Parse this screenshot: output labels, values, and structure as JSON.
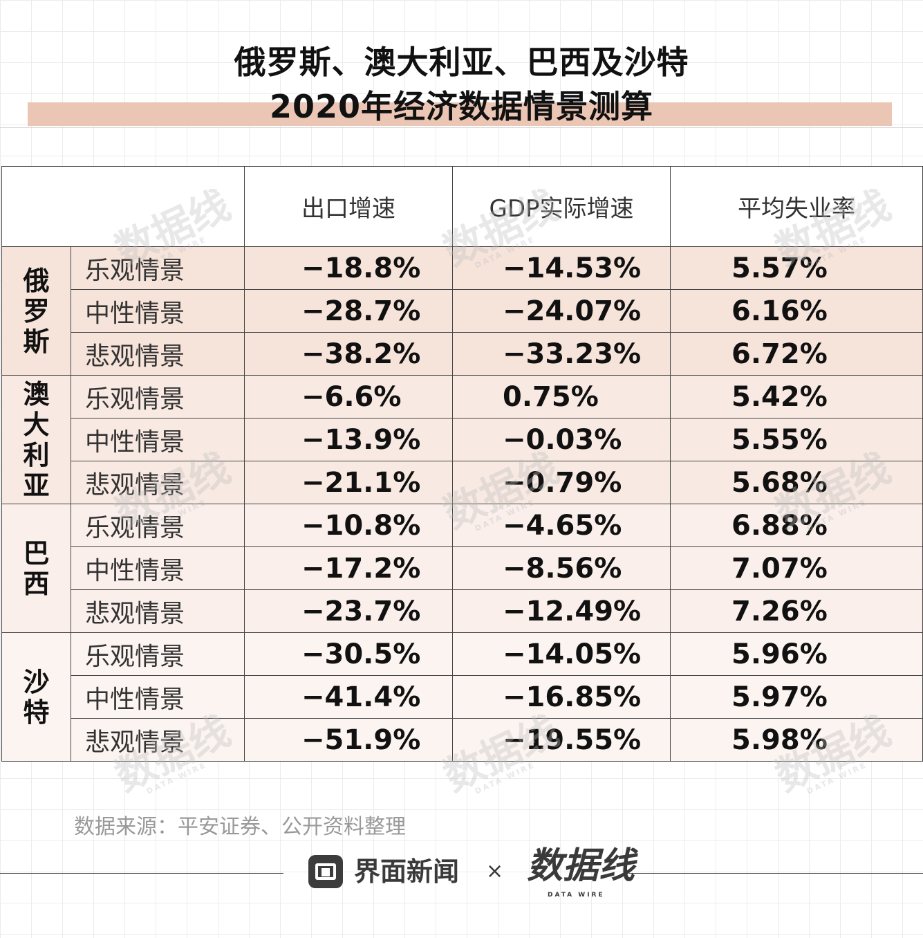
{
  "title": {
    "line1": "俄罗斯、澳大利亚、巴西及沙特",
    "line2": "2020年经济数据情景测算"
  },
  "chart_data": {
    "type": "table",
    "columns": [
      "出口增速",
      "GDP实际增速",
      "平均失业率"
    ],
    "groups": [
      {
        "country": "俄罗斯",
        "rows": [
          {
            "scenario": "乐观情景",
            "values": [
              "−18.8%",
              "−14.53%",
              "5.57%"
            ]
          },
          {
            "scenario": "中性情景",
            "values": [
              "−28.7%",
              "−24.07%",
              "6.16%"
            ]
          },
          {
            "scenario": "悲观情景",
            "values": [
              "−38.2%",
              "−33.23%",
              "6.72%"
            ]
          }
        ]
      },
      {
        "country": "澳大利亚",
        "rows": [
          {
            "scenario": "乐观情景",
            "values": [
              "−6.6%",
              "0.75%",
              "5.42%"
            ]
          },
          {
            "scenario": "中性情景",
            "values": [
              "−13.9%",
              "−0.03%",
              "5.55%"
            ]
          },
          {
            "scenario": "悲观情景",
            "values": [
              "−21.1%",
              "−0.79%",
              "5.68%"
            ]
          }
        ]
      },
      {
        "country": "巴西",
        "rows": [
          {
            "scenario": "乐观情景",
            "values": [
              "−10.8%",
              "−4.65%",
              "6.88%"
            ]
          },
          {
            "scenario": "中性情景",
            "values": [
              "−17.2%",
              "−8.56%",
              "7.07%"
            ]
          },
          {
            "scenario": "悲观情景",
            "values": [
              "−23.7%",
              "−12.49%",
              "7.26%"
            ]
          }
        ]
      },
      {
        "country": "沙特",
        "rows": [
          {
            "scenario": "乐观情景",
            "values": [
              "−30.5%",
              "−14.05%",
              "5.96%"
            ]
          },
          {
            "scenario": "中性情景",
            "values": [
              "−41.4%",
              "−16.85%",
              "5.97%"
            ]
          },
          {
            "scenario": "悲观情景",
            "values": [
              "−51.9%",
              "−19.55%",
              "5.98%"
            ]
          }
        ]
      }
    ]
  },
  "source": "数据来源：平安证券、公开资料整理",
  "footer": {
    "brand1": "界面新闻",
    "separator": "×",
    "brand2": "数据线",
    "brand2_sub": "DATA WIRE"
  },
  "watermark": {
    "text": "数据线",
    "sub": "DATA WIRE"
  },
  "colors": {
    "title_band": "#ecc6b4",
    "row_tint": "#f6e3da",
    "border": "#444444"
  }
}
